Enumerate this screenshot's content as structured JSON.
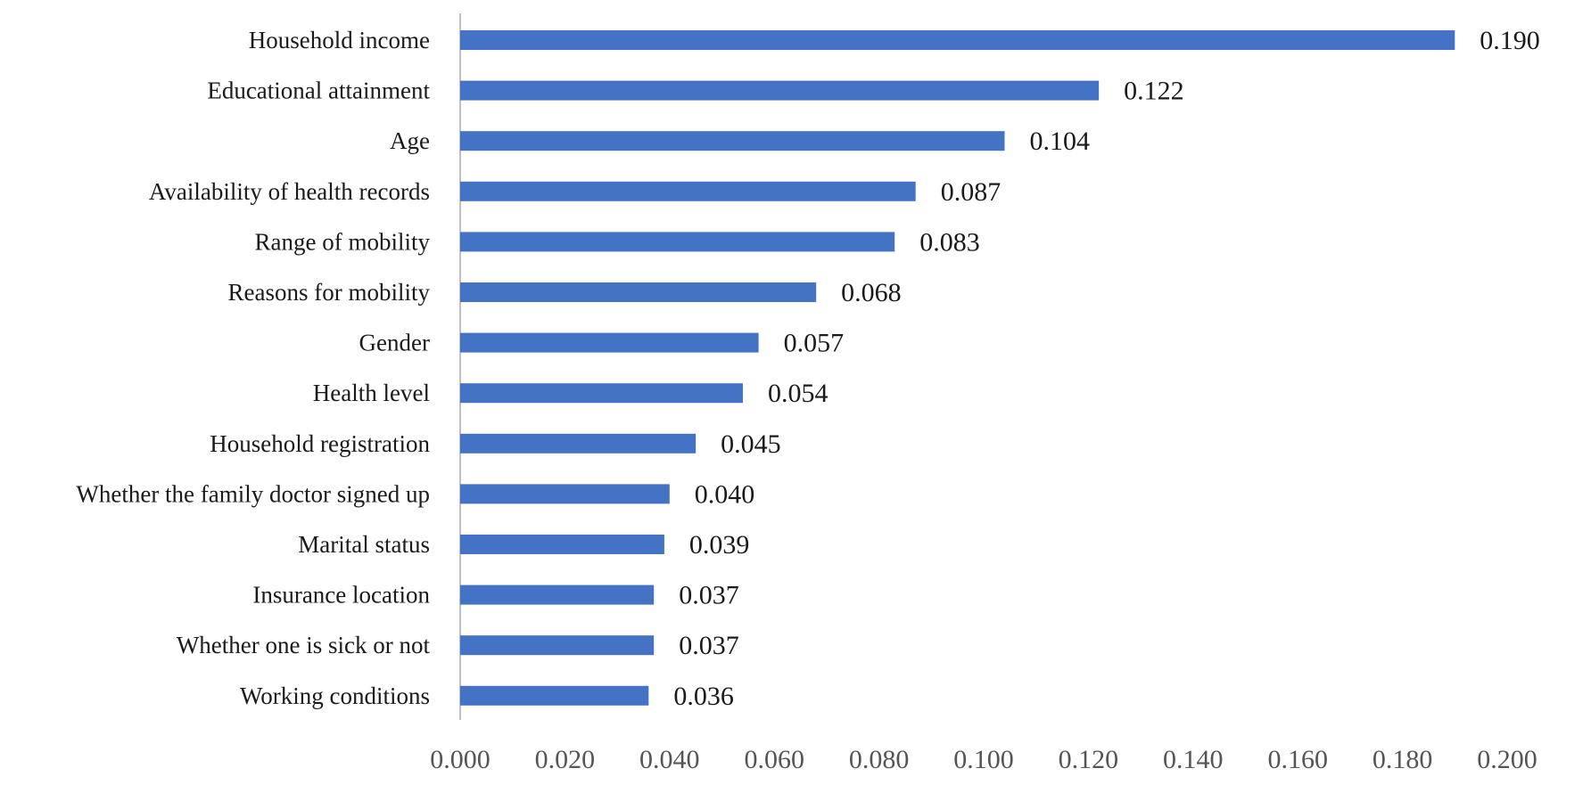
{
  "chart_data": {
    "type": "bar",
    "orientation": "horizontal",
    "categories": [
      "Household income",
      "Educational attainment",
      "Age",
      "Availability of health records",
      "Range of mobility",
      "Reasons for mobility",
      "Gender",
      "Health level",
      "Household registration",
      "Whether the family doctor signed up",
      "Marital status",
      "Insurance location",
      "Whether one is sick or not",
      "Working conditions"
    ],
    "values": [
      0.19,
      0.122,
      0.104,
      0.087,
      0.083,
      0.068,
      0.057,
      0.054,
      0.045,
      0.04,
      0.039,
      0.037,
      0.037,
      0.036
    ],
    "value_labels": [
      "0.190",
      "0.122",
      "0.104",
      "0.087",
      "0.083",
      "0.068",
      "0.057",
      "0.054",
      "0.045",
      "0.040",
      "0.039",
      "0.037",
      "0.037",
      "0.036"
    ],
    "xticks": [
      "0.000",
      "0.020",
      "0.040",
      "0.060",
      "0.080",
      "0.100",
      "0.120",
      "0.140",
      "0.160",
      "0.180",
      "0.200"
    ],
    "xlim": [
      0,
      0.2
    ],
    "title": "",
    "xlabel": "",
    "ylabel": "",
    "grid": false,
    "legend": "none",
    "bar_color": "#4472C4"
  }
}
